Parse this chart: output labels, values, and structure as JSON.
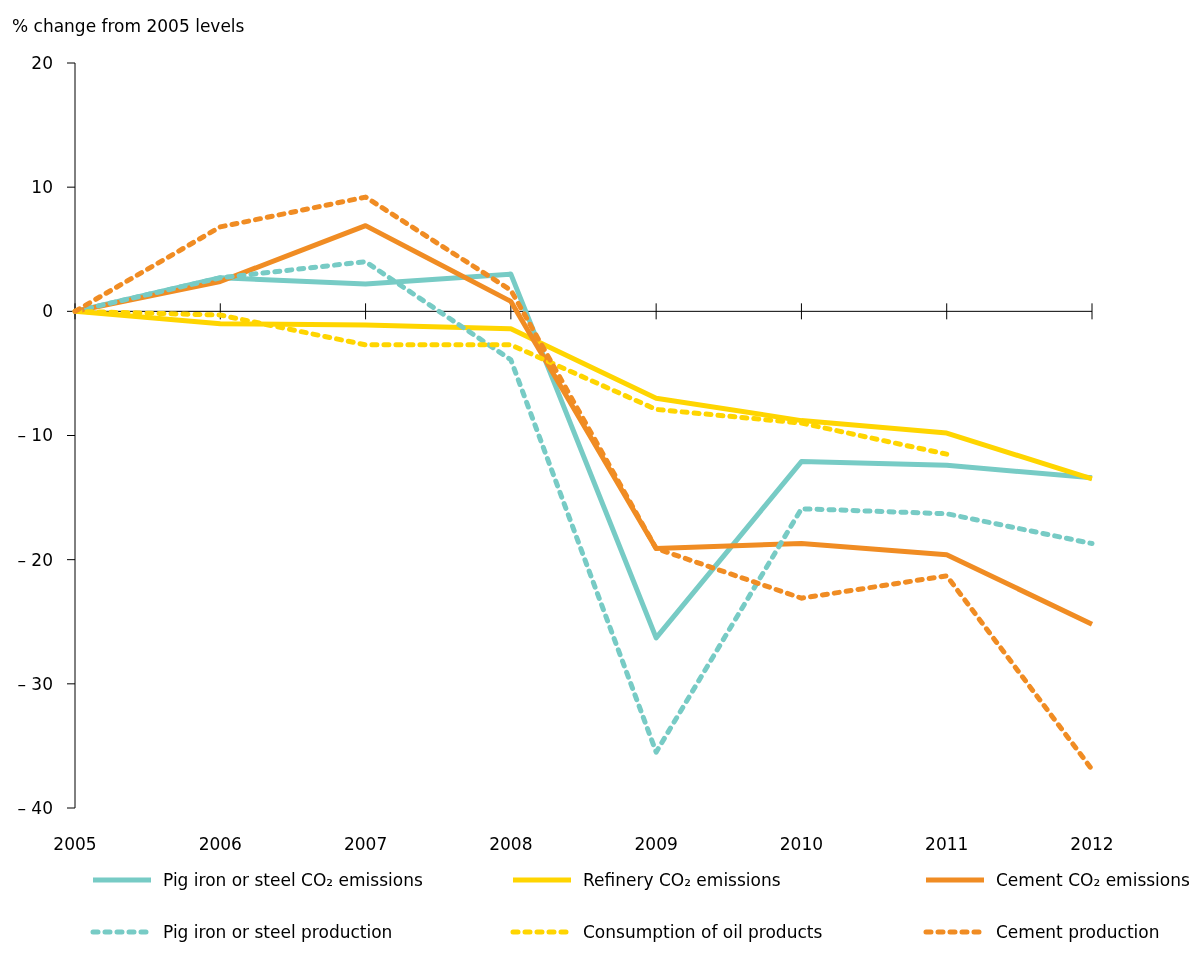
{
  "chart_data": {
    "type": "line",
    "ylabel": "% change from 2005 levels",
    "x": [
      2005,
      2006,
      2007,
      2008,
      2009,
      2010,
      2011,
      2012
    ],
    "xlim": [
      2005,
      2012
    ],
    "xticks": [
      2005,
      2006,
      2007,
      2008,
      2009,
      2010,
      2011,
      2012
    ],
    "ylim": [
      -40,
      20
    ],
    "yticks": [
      {
        "value": -40,
        "label": "– 40"
      },
      {
        "value": -30,
        "label": "– 30"
      },
      {
        "value": -20,
        "label": "– 20"
      },
      {
        "value": -10,
        "label": "– 10"
      },
      0,
      10,
      20
    ],
    "ref_lines": [
      {
        "axis": "y",
        "value": 0
      }
    ],
    "legend": "bottom",
    "marker": "none",
    "series": [
      {
        "name": "Pig iron or steel CO₂ emissions",
        "color": "#77cbc5",
        "line_style": "solid",
        "values": [
          0,
          2.7,
          2.2,
          3.0,
          -26.3,
          -12.1,
          -12.4,
          -13.4
        ]
      },
      {
        "name": "Refinery CO₂ emissions",
        "color": "#ffd500",
        "line_style": "solid",
        "values": [
          0,
          -1.0,
          -1.1,
          -1.4,
          -7.0,
          -8.8,
          -9.8,
          -13.5
        ]
      },
      {
        "name": "Cement CO₂ emissions",
        "color": "#f08c23",
        "line_style": "solid",
        "values": [
          0,
          2.4,
          6.9,
          0.8,
          -19.1,
          -18.7,
          -19.6,
          -25.2
        ]
      },
      {
        "name": "Pig iron or steel production",
        "color": "#77cbc5",
        "line_style": "dotted",
        "values": [
          0,
          2.7,
          4.0,
          -3.9,
          -35.5,
          -15.9,
          -16.3,
          -18.7
        ]
      },
      {
        "name": "Consumption of oil products",
        "color": "#ffd500",
        "line_style": "dotted",
        "values": [
          0,
          -0.3,
          -2.7,
          -2.7,
          -7.9,
          -9.0,
          -11.5,
          null
        ]
      },
      {
        "name": "Cement production",
        "color": "#f08c23",
        "line_style": "dotted",
        "values": [
          0,
          6.8,
          9.2,
          1.7,
          -19.1,
          -23.1,
          -21.3,
          -36.9
        ]
      }
    ]
  }
}
